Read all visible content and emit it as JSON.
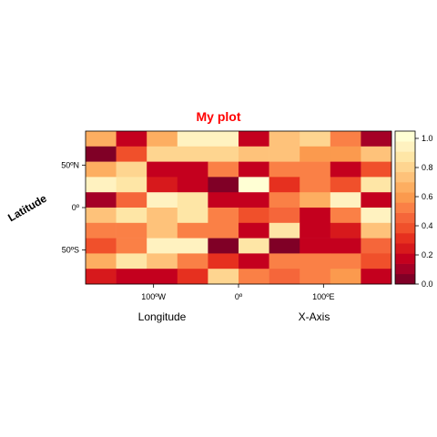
{
  "chart_data": {
    "type": "heatmap",
    "title": "My plot",
    "xlabel": "Longitude",
    "xlabel_secondary": "X-Axis",
    "ylabel": "Latitude",
    "x_ticks": [
      {
        "value": -100,
        "label": "100ºW"
      },
      {
        "value": 0,
        "label": "0º"
      },
      {
        "value": 100,
        "label": "100ºE"
      }
    ],
    "y_ticks": [
      {
        "value": 50,
        "label": "50ºN"
      },
      {
        "value": 0,
        "label": "0º"
      },
      {
        "value": -50,
        "label": "50ºS"
      }
    ],
    "xlim": [
      -180,
      180
    ],
    "ylim": [
      -90,
      90
    ],
    "colorbar": {
      "range": [
        0,
        1.05
      ],
      "ticks": [
        {
          "value": 0.0,
          "label": "0.0"
        },
        {
          "value": 0.2,
          "label": "0.2"
        },
        {
          "value": 0.4,
          "label": "0.4"
        },
        {
          "value": 0.6,
          "label": "0.6"
        },
        {
          "value": 0.8,
          "label": "0.8"
        },
        {
          "value": 1.0,
          "label": "1.0"
        }
      ],
      "colors": [
        "#800026",
        "#a50026",
        "#c4001e",
        "#d7191c",
        "#e6301f",
        "#f0502b",
        "#f5663a",
        "#fa8046",
        "#fb9a4e",
        "#fdae61",
        "#fec27a",
        "#fed590",
        "#fee6a6",
        "#fff2c0",
        "#ffffd4"
      ]
    },
    "grid": false,
    "x_cells": [
      -180,
      -144,
      -108,
      -72,
      -36,
      0,
      36,
      72,
      108,
      144,
      180
    ],
    "y_cells": [
      90,
      72,
      54,
      36,
      18,
      0,
      -18,
      -36,
      -54,
      -72,
      -90
    ],
    "values": [
      [
        0.65,
        0.2,
        0.65,
        0.95,
        0.95,
        0.2,
        0.7,
        0.8,
        0.5,
        0.1
      ],
      [
        0.05,
        0.4,
        0.8,
        0.8,
        0.8,
        0.75,
        0.75,
        0.6,
        0.6,
        0.7
      ],
      [
        0.65,
        0.8,
        0.2,
        0.15,
        0.55,
        0.2,
        0.55,
        0.55,
        0.2,
        0.4
      ],
      [
        0.95,
        0.85,
        0.25,
        0.15,
        0.05,
        1.0,
        0.3,
        0.55,
        0.35,
        0.85
      ],
      [
        0.1,
        0.45,
        0.95,
        0.9,
        0.2,
        0.2,
        0.5,
        0.65,
        0.95,
        0.2
      ],
      [
        0.75,
        0.9,
        0.7,
        0.9,
        0.55,
        0.35,
        0.45,
        0.2,
        0.55,
        0.95
      ],
      [
        0.55,
        0.55,
        0.75,
        0.5,
        0.55,
        0.2,
        0.85,
        0.2,
        0.25,
        0.75
      ],
      [
        0.35,
        0.5,
        0.95,
        0.95,
        0.05,
        0.85,
        0.05,
        0.2,
        0.2,
        0.45
      ],
      [
        0.65,
        0.85,
        0.7,
        0.55,
        0.3,
        0.15,
        0.55,
        0.55,
        0.55,
        0.35
      ],
      [
        0.25,
        0.15,
        0.2,
        0.3,
        0.8,
        0.55,
        0.45,
        0.5,
        0.6,
        0.15
      ]
    ]
  }
}
